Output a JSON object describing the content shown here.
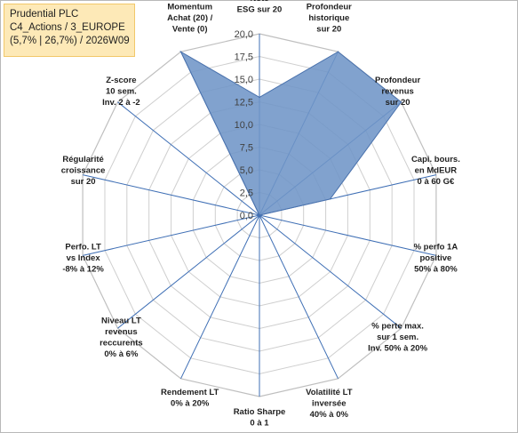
{
  "title": {
    "line1": "Prudential PLC",
    "line2": "C4_Actions / 3_EUROPE",
    "line3": "(5,7% | 26,7%) / 2026W09"
  },
  "chart_data": {
    "type": "radar",
    "rmin": 0,
    "rmax": 20,
    "ticks": [
      "0,0",
      "2,5",
      "5,0",
      "7,5",
      "10,0",
      "12,5",
      "15,0",
      "17,5",
      "20,0"
    ],
    "tick_values": [
      0,
      2.5,
      5,
      7.5,
      10,
      12.5,
      15,
      17.5,
      20
    ],
    "grid": true,
    "series_color": "#6f95c7",
    "axes": [
      {
        "label": [
          "Note",
          "ESG sur 20"
        ],
        "value": 13
      },
      {
        "label": [
          "Profondeur",
          "historique",
          "sur 20"
        ],
        "value": 20
      },
      {
        "label": [
          "Profondeur",
          "revenus",
          "sur 20"
        ],
        "value": 20
      },
      {
        "label": [
          "Capi. bours.",
          "en MdEUR",
          "0 à 60 G€"
        ],
        "value": 8
      },
      {
        "label": [
          "% perfo 1A",
          "positive",
          "50% à 80%"
        ],
        "value": 0
      },
      {
        "label": [
          "% perte max.",
          "sur 1 sem.",
          "Inv. 50% à 20%"
        ],
        "value": 0
      },
      {
        "label": [
          "Volatilité LT",
          "inversée",
          "40% à 0%"
        ],
        "value": 0
      },
      {
        "label": [
          "Ratio Sharpe",
          "0 à 1"
        ],
        "value": 0
      },
      {
        "label": [
          "Rendement LT",
          "0% à 20%"
        ],
        "value": 0
      },
      {
        "label": [
          "Niveau LT",
          "revenus",
          "reccurents",
          "0% à 6%"
        ],
        "value": 0
      },
      {
        "label": [
          "Perfo. LT",
          "vs Index",
          "-8% à 12%"
        ],
        "value": 0
      },
      {
        "label": [
          "Régularité",
          "croissance",
          "sur 20"
        ],
        "value": 0
      },
      {
        "label": [
          "Z-score",
          "10 sem.",
          "Inv. 2 à -2"
        ],
        "value": 0
      },
      {
        "label": [
          "Momentum",
          "Achat (20) /",
          "Vente (0)"
        ],
        "value": 20
      }
    ]
  }
}
